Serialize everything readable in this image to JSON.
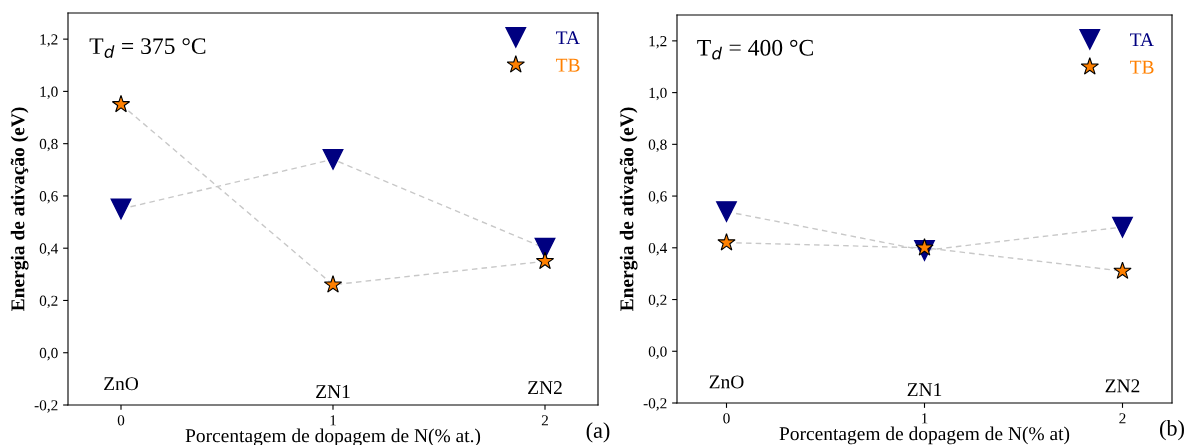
{
  "chart_data": [
    {
      "type": "line",
      "x": [
        0,
        1,
        2
      ],
      "xlim": [
        -0.25,
        2.25
      ],
      "xticks": [
        0,
        1,
        2
      ],
      "ylim": [
        -0.2,
        1.3
      ],
      "yticks": [
        {
          "value": -0.2,
          "label": "-0,2"
        },
        {
          "value": 0.0,
          "label": "0,0"
        },
        {
          "value": 0.2,
          "label": "0,2"
        },
        {
          "value": 0.4,
          "label": "0,4"
        },
        {
          "value": 0.6,
          "label": "0,6"
        },
        {
          "value": 0.8,
          "label": "0,8"
        },
        {
          "value": 1.0,
          "label": "1,0"
        },
        {
          "value": 1.2,
          "label": "1,2"
        }
      ],
      "xlabel": "Porcentagem de dopagem de N(% at.)",
      "ylabel": "Energia de ativação (eV)",
      "line_style": "dashed",
      "legend": "top right",
      "grid": false,
      "series": [
        {
          "name": "TA",
          "color": "#000080",
          "marker": "triangle",
          "values": [
            0.55,
            0.74,
            0.4
          ]
        },
        {
          "name": "TB",
          "color": "#ff8000",
          "marker": "star",
          "values": [
            0.95,
            0.26,
            0.35
          ]
        }
      ],
      "annotations": [
        "T$_{d}$ = 375 °C",
        "ZnO",
        "ZN1",
        "ZN2",
        "(a)"
      ]
    },
    {
      "type": "line",
      "x": [
        0,
        1,
        2
      ],
      "xlim": [
        -0.25,
        2.25
      ],
      "xticks": [
        0,
        1,
        2
      ],
      "ylim": [
        -0.2,
        1.3
      ],
      "yticks": [
        {
          "value": -0.2,
          "label": "-0,2"
        },
        {
          "value": 0.0,
          "label": "0,0"
        },
        {
          "value": 0.2,
          "label": "0,2"
        },
        {
          "value": 0.4,
          "label": "0,4"
        },
        {
          "value": 0.6,
          "label": "0,6"
        },
        {
          "value": 0.8,
          "label": "0,8"
        },
        {
          "value": 1.0,
          "label": "1,0"
        },
        {
          "value": 1.2,
          "label": "1,2"
        }
      ],
      "xlabel": "Porcentagem de dopagem de N(% at)",
      "ylabel": "Energia de ativação (eV)",
      "line_style": "dashed",
      "legend": "top right",
      "grid": false,
      "series": [
        {
          "name": "TA",
          "color": "#000080",
          "marker": "triangle",
          "values": [
            0.54,
            0.39,
            0.48
          ]
        },
        {
          "name": "TB",
          "color": "#ff8000",
          "marker": "star",
          "values": [
            0.42,
            0.4,
            0.31
          ]
        }
      ],
      "annotations": [
        "T$_{d}$ = 400 °C",
        "ZnO",
        "ZN1",
        "ZN2",
        "(b)"
      ]
    }
  ]
}
